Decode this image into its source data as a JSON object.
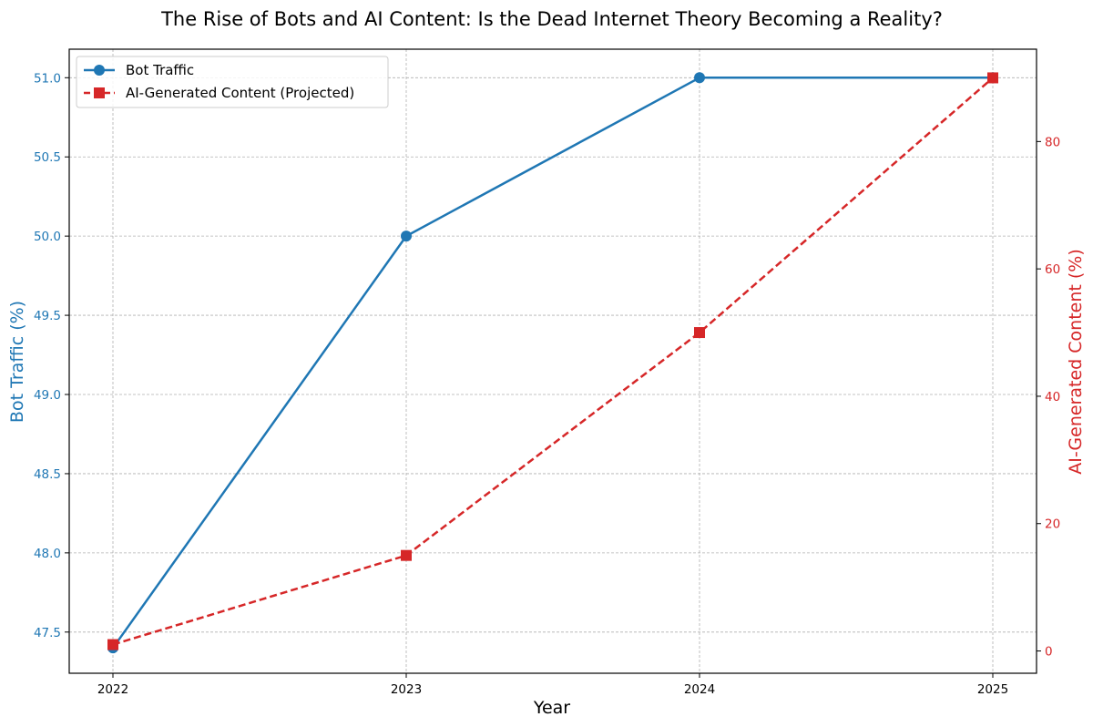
{
  "chart_data": {
    "type": "line",
    "title": "The Rise of Bots and AI Content: Is the Dead Internet Theory Becoming a Reality?",
    "xlabel": "Year",
    "x": [
      "2022",
      "2023",
      "2024",
      "2025"
    ],
    "grid": true,
    "legend_position": "top-left",
    "left_axis": {
      "label": "Bot Traffic (%)",
      "range": [
        47.24,
        51.18
      ],
      "ticks": [
        "47.5",
        "48.0",
        "48.5",
        "49.0",
        "49.5",
        "50.0",
        "50.5",
        "51.0"
      ],
      "color": "#1f77b4"
    },
    "right_axis": {
      "label": "AI-Generated Content (%)",
      "range": [
        -3.5,
        94.5
      ],
      "ticks": [
        "0",
        "20",
        "40",
        "60",
        "80"
      ],
      "color": "#d62728"
    },
    "series": [
      {
        "name": "Bot Traffic",
        "axis": "left",
        "values": [
          47.4,
          50.0,
          51.0,
          51.0
        ],
        "color": "#1f77b4",
        "marker": "circle",
        "line_style": "solid"
      },
      {
        "name": "AI-Generated Content (Projected)",
        "axis": "right",
        "values": [
          1,
          15,
          50,
          90
        ],
        "color": "#d62728",
        "marker": "square",
        "line_style": "dashed"
      }
    ]
  }
}
